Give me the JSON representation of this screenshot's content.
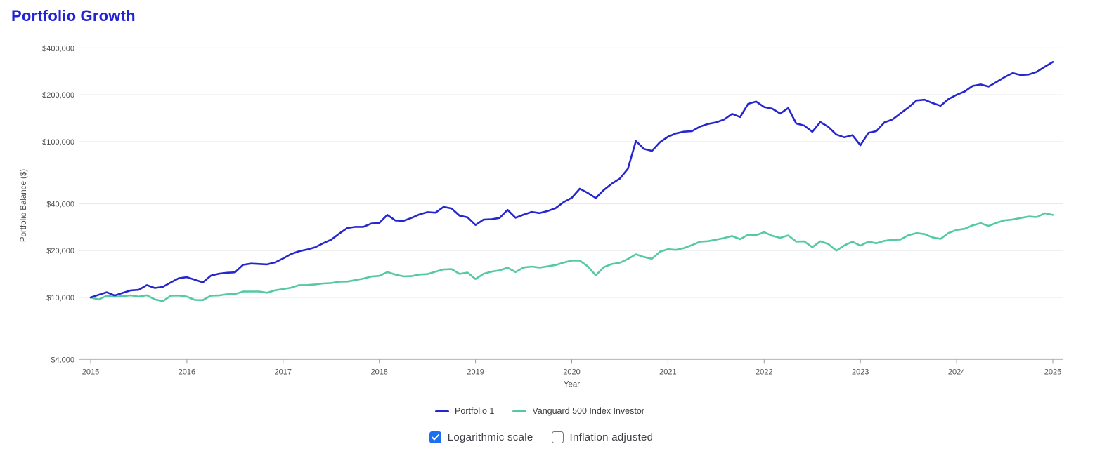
{
  "page": {
    "title": "Portfolio Growth"
  },
  "controls": {
    "logarithmic": {
      "label": "Logarithmic scale",
      "checked": true
    },
    "inflation": {
      "label": "Inflation adjusted",
      "checked": false
    }
  },
  "colors": {
    "title": "#2323d6",
    "portfolio_line": "#2626cf",
    "benchmark_line": "#55c9a4",
    "gridline": "#e6e6e6",
    "axis_line": "#b5b5b5",
    "tick_text": "#4d4d4d",
    "checkbox_checked": "#1a6ff2"
  },
  "chart_data": {
    "type": "line",
    "title": "Portfolio Growth",
    "xlabel": "Year",
    "ylabel": "Portfolio Balance ($)",
    "y_scale": "log",
    "grid": "horizontal-only",
    "legend_position": "bottom-center",
    "x_range": [
      2015,
      2025
    ],
    "x_interval": "month",
    "x_ticks": [
      "2015",
      "2016",
      "2017",
      "2018",
      "2019",
      "2020",
      "2021",
      "2022",
      "2023",
      "2024",
      "2025"
    ],
    "y_ticks": [
      {
        "value": 400000,
        "label": "$400,000"
      },
      {
        "value": 200000,
        "label": "$200,000"
      },
      {
        "value": 100000,
        "label": "$100,000"
      },
      {
        "value": 40000,
        "label": "$40,000"
      },
      {
        "value": 20000,
        "label": "$20,000"
      },
      {
        "value": 10000,
        "label": "$10,000"
      },
      {
        "value": 4000,
        "label": "$4,000"
      }
    ],
    "series": [
      {
        "name": "Portfolio 1",
        "color": "#2626cf",
        "start_value": 10000,
        "end_value": 325000,
        "values": [
          10000,
          10400,
          10800,
          10300,
          10700,
          11100,
          11200,
          12000,
          11500,
          11700,
          12500,
          13300,
          13500,
          13000,
          12500,
          13800,
          14200,
          14400,
          14500,
          16200,
          16500,
          16400,
          16300,
          16800,
          17800,
          19000,
          19800,
          20300,
          21000,
          22300,
          23500,
          25700,
          27900,
          28400,
          28400,
          29800,
          30100,
          33900,
          31200,
          31000,
          32400,
          34100,
          35300,
          35000,
          38100,
          37300,
          33500,
          32700,
          29200,
          31600,
          31800,
          32400,
          36500,
          32500,
          34000,
          35400,
          34800,
          35900,
          37500,
          41000,
          43600,
          49900,
          46900,
          43500,
          49000,
          53700,
          58000,
          67000,
          101000,
          90000,
          87300,
          99300,
          107500,
          113000,
          116000,
          117000,
          125000,
          130000,
          133000,
          139000,
          151000,
          144000,
          175000,
          181000,
          167000,
          163000,
          151600,
          164600,
          131000,
          127000,
          115700,
          133700,
          124500,
          111200,
          106600,
          110100,
          94800,
          114000,
          117000,
          133000,
          139000,
          152000,
          166000,
          184000,
          186000,
          177000,
          170000,
          188000,
          200000,
          210000,
          228000,
          233000,
          226000,
          242000,
          260000,
          276000,
          268000,
          270000,
          281000,
          303000,
          325000
        ]
      },
      {
        "name": "Vanguard 500 Index Investor",
        "color": "#55c9a4",
        "start_value": 10000,
        "end_value": 33880,
        "values": [
          10000,
          9700,
          10260,
          10090,
          10190,
          10320,
          10120,
          10330,
          9710,
          9470,
          10270,
          10300,
          10130,
          9630,
          9620,
          10270,
          10310,
          10490,
          10520,
          10910,
          10920,
          10920,
          10720,
          11120,
          11330,
          11550,
          12000,
          12010,
          12130,
          12300,
          12380,
          12630,
          12660,
          12920,
          13220,
          13620,
          13770,
          14560,
          14020,
          13660,
          13710,
          14040,
          14120,
          14650,
          15120,
          15210,
          14170,
          14450,
          13140,
          14190,
          14650,
          14930,
          15530,
          14550,
          15570,
          15790,
          15540,
          15830,
          16170,
          16760,
          17260,
          17250,
          15830,
          13870,
          15650,
          16390,
          16710,
          17650,
          18920,
          18200,
          17720,
          19660,
          20410,
          20200,
          20760,
          21670,
          22820,
          22980,
          23510,
          24070,
          24800,
          23650,
          25300,
          25130,
          26250,
          24890,
          24150,
          25040,
          22860,
          22900,
          21010,
          22940,
          22010,
          19980,
          21600,
          22800,
          21490,
          22840,
          22280,
          23100,
          23460,
          23560,
          25110,
          25920,
          25510,
          24290,
          23780,
          25950,
          27130,
          27580,
          29050,
          29980,
          28760,
          30180,
          31260,
          31640,
          32400,
          33090,
          32790,
          34710,
          33880
        ]
      }
    ]
  }
}
